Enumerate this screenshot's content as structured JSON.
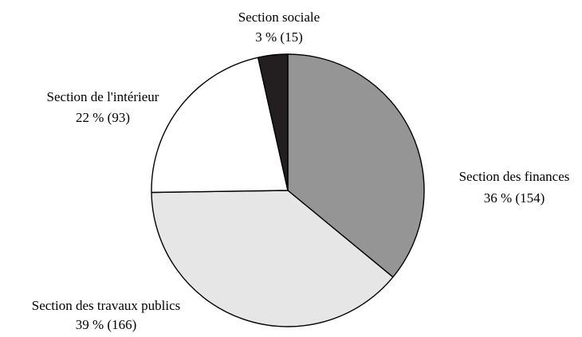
{
  "chart_data": {
    "type": "pie",
    "title": "",
    "slices": [
      {
        "label": "Section des finances",
        "value_text": "36 % (154)",
        "percent": 36,
        "count": 154,
        "color": "#959595"
      },
      {
        "label": "Section des travaux publics",
        "value_text": "39 % (166)",
        "percent": 39,
        "count": 166,
        "color": "#e6e6e6"
      },
      {
        "label": "Section de l'intérieur",
        "value_text": "22 % (93)",
        "percent": 22,
        "count": 93,
        "color": "#ffffff"
      },
      {
        "label": "Section sociale",
        "value_text": "3 % (15)",
        "percent": 3,
        "count": 15,
        "color": "#231f20"
      }
    ],
    "start": "12 o'clock",
    "direction": "clockwise",
    "stroke_color": "#000000"
  }
}
